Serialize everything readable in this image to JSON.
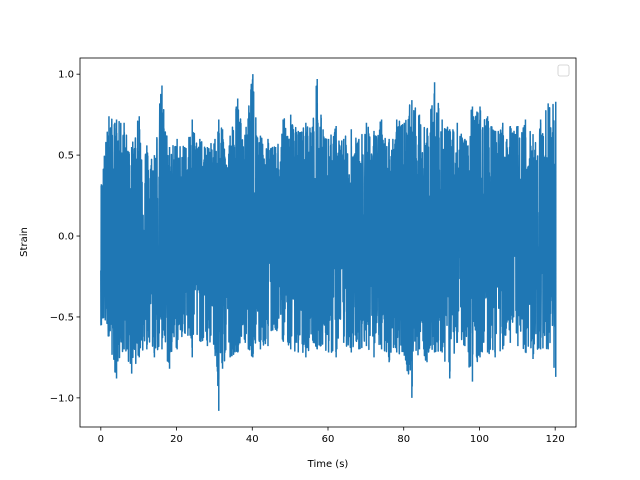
{
  "chart_data": {
    "type": "line",
    "title": "",
    "xlabel": "Time (s)",
    "ylabel": "Strain",
    "xlim": [
      -5.5,
      125.5
    ],
    "ylim": [
      -1.18,
      1.1
    ],
    "grid": false,
    "legend": {
      "position": "top-right",
      "entries": []
    },
    "x_ticks": [
      0,
      20,
      40,
      60,
      80,
      100,
      120
    ],
    "x_tick_labels": [
      "0",
      "20",
      "40",
      "60",
      "80",
      "100",
      "120"
    ],
    "y_ticks": [
      -1.0,
      -0.5,
      0.0,
      0.5,
      1.0
    ],
    "y_tick_labels": [
      "−1.0",
      "−0.5",
      "0.0",
      "0.5",
      "1.0"
    ],
    "series": [
      {
        "color": "#1f77b4",
        "x_start": 0,
        "x_end": 120,
        "envelope": {
          "x": [
            0,
            2,
            4,
            6,
            8,
            10,
            12,
            14,
            16,
            18,
            20,
            22,
            24,
            26,
            28,
            30,
            31,
            32,
            34,
            36,
            38,
            40,
            42,
            44,
            46,
            48,
            50,
            52,
            54,
            56,
            57,
            58,
            60,
            62,
            64,
            66,
            68,
            70,
            72,
            74,
            76,
            78,
            80,
            82,
            84,
            86,
            88,
            90,
            92,
            94,
            96,
            98,
            100,
            102,
            104,
            106,
            108,
            110,
            112,
            114,
            116,
            118,
            120
          ],
          "upper": [
            0.32,
            0.74,
            0.72,
            0.7,
            0.55,
            0.74,
            0.56,
            0.5,
            0.93,
            0.55,
            0.6,
            0.55,
            0.72,
            0.6,
            0.55,
            0.6,
            0.72,
            0.66,
            0.62,
            0.85,
            0.62,
            1.0,
            0.62,
            0.6,
            0.55,
            0.72,
            0.75,
            0.65,
            0.7,
            0.72,
            0.97,
            0.75,
            0.6,
            0.68,
            0.6,
            0.66,
            0.6,
            0.7,
            0.65,
            0.72,
            0.6,
            0.72,
            0.7,
            0.84,
            0.75,
            0.66,
            0.95,
            0.72,
            0.66,
            0.7,
            0.6,
            0.8,
            0.8,
            0.74,
            0.65,
            0.7,
            0.68,
            0.68,
            0.72,
            0.63,
            0.72,
            0.82,
            0.83
          ],
          "lower": [
            -0.55,
            -0.62,
            -0.88,
            -0.7,
            -0.85,
            -0.75,
            -0.7,
            -0.75,
            -0.7,
            -0.82,
            -0.7,
            -0.6,
            -0.75,
            -0.65,
            -0.68,
            -0.7,
            -1.08,
            -0.82,
            -0.75,
            -0.72,
            -0.66,
            -0.75,
            -0.7,
            -0.68,
            -0.58,
            -0.65,
            -0.7,
            -0.72,
            -0.75,
            -0.66,
            -0.7,
            -0.68,
            -0.72,
            -0.75,
            -0.66,
            -0.72,
            -0.7,
            -0.68,
            -0.75,
            -0.7,
            -0.78,
            -0.72,
            -0.74,
            -1.0,
            -0.7,
            -0.78,
            -0.72,
            -0.72,
            -0.88,
            -0.66,
            -0.68,
            -0.9,
            -0.75,
            -0.72,
            -0.75,
            -0.7,
            -0.66,
            -0.68,
            -0.72,
            -0.76,
            -0.7,
            -0.7,
            -0.87
          ]
        }
      }
    ]
  }
}
